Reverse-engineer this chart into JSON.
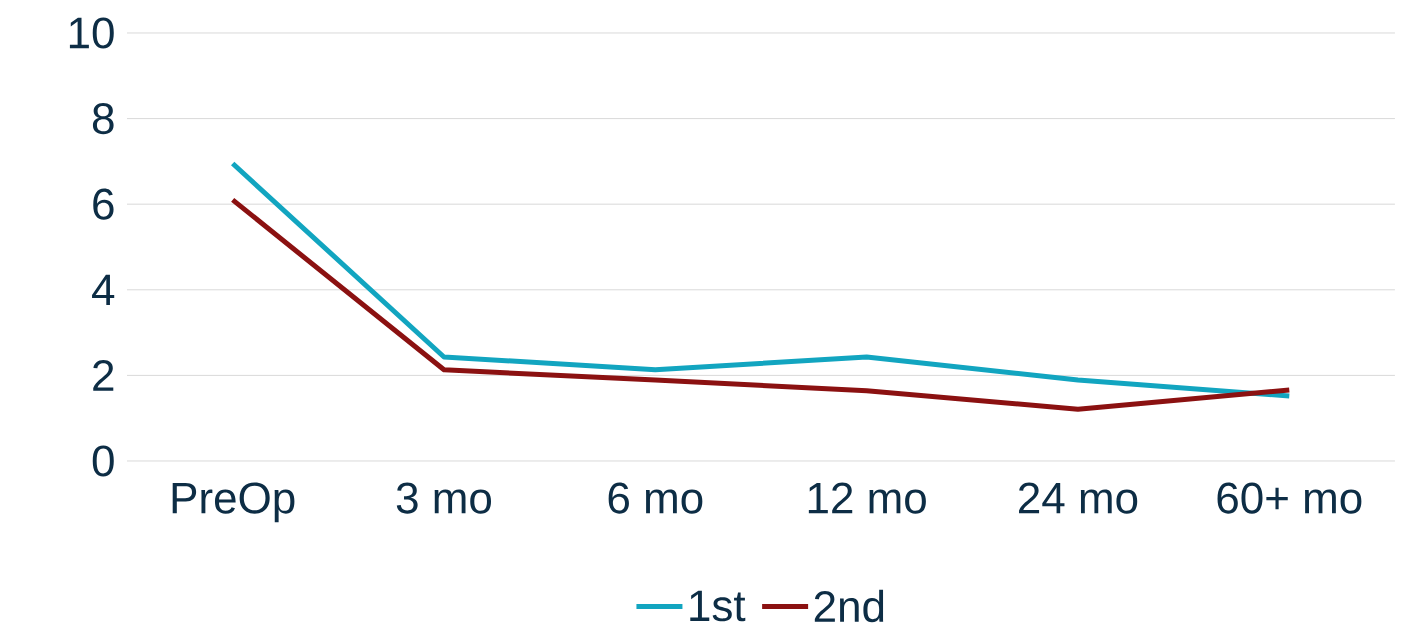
{
  "chart_data": {
    "type": "line",
    "categories": [
      "PreOp",
      "3 mo",
      "6 mo",
      "12 mo",
      "24 mo",
      "60+ mo"
    ],
    "series": [
      {
        "name": "1st",
        "color": "#12a5c0",
        "values": [
          6.95,
          2.43,
          2.13,
          2.43,
          1.89,
          1.52
        ]
      },
      {
        "name": "2nd",
        "color": "#8b1111",
        "values": [
          6.1,
          2.13,
          1.89,
          1.64,
          1.21,
          1.66
        ]
      }
    ],
    "ylim": [
      0,
      10
    ],
    "yticks": [
      0,
      2,
      4,
      6,
      8,
      10
    ],
    "grid": "y",
    "legend": "bottom",
    "marker": "none",
    "line_style": "solid"
  }
}
